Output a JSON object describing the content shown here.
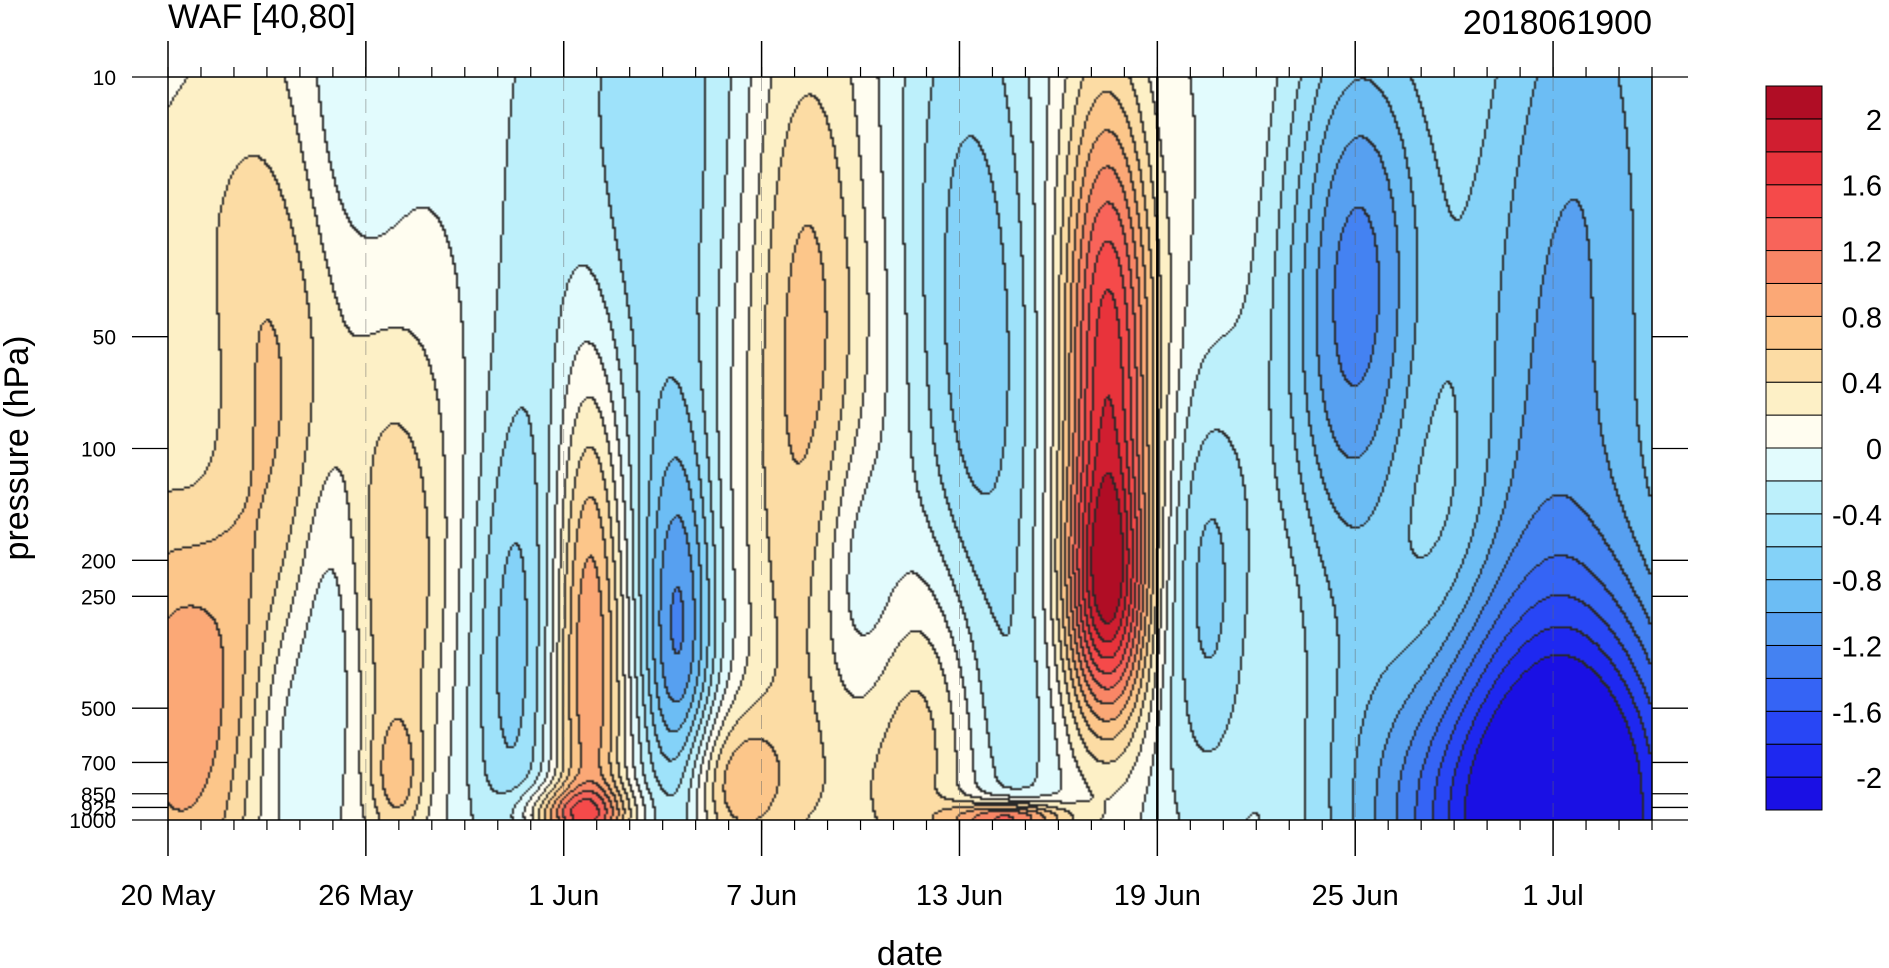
{
  "chart_data": {
    "type": "heatmap",
    "title_left": "WAF [40,80]",
    "title_right": "2018061900",
    "xlabel": "date",
    "ylabel": "pressure (hPa)",
    "log_y": true,
    "ylim": [
      10,
      1000
    ],
    "x_day_range": [
      0,
      45
    ],
    "x_ticks": [
      {
        "label": "20 May",
        "day": 0
      },
      {
        "label": "26 May",
        "day": 6
      },
      {
        "label": "1 Jun",
        "day": 12
      },
      {
        "label": "7 Jun",
        "day": 18
      },
      {
        "label": "13 Jun",
        "day": 24
      },
      {
        "label": "19 Jun",
        "day": 30
      },
      {
        "label": "25 Jun",
        "day": 36
      },
      {
        "label": "1 Jul",
        "day": 42
      }
    ],
    "y_ticks": [
      {
        "label": "10",
        "p": 10
      },
      {
        "label": "50",
        "p": 50
      },
      {
        "label": "100",
        "p": 100
      },
      {
        "label": "200",
        "p": 200
      },
      {
        "label": "250",
        "p": 250
      },
      {
        "label": "500",
        "p": 500
      },
      {
        "label": "700",
        "p": 700
      },
      {
        "label": "850",
        "p": 850
      },
      {
        "label": "925",
        "p": 925
      },
      {
        "label": "1000",
        "p": 1000
      }
    ],
    "analysis_day": 30,
    "colorbar": {
      "levels": [
        -2.2,
        -2.0,
        -1.8,
        -1.6,
        -1.4,
        -1.2,
        -1.0,
        -0.8,
        -0.6,
        -0.4,
        -0.2,
        0,
        0.2,
        0.4,
        0.6,
        0.8,
        1.0,
        1.2,
        1.4,
        1.6,
        1.8,
        2.0,
        2.2
      ],
      "colors": [
        "#1a10e4",
        "#1e28f0",
        "#2846f5",
        "#3564f5",
        "#4482f2",
        "#57a0f0",
        "#6cbdf4",
        "#84d2f8",
        "#9ee2fa",
        "#bdf0fb",
        "#e2fbfd",
        "#fffdf0",
        "#fdf0c6",
        "#fcdca4",
        "#fcc68a",
        "#fba876",
        "#f98666",
        "#f8645a",
        "#f54a4a",
        "#e8333b",
        "#d01e30",
        "#b00d25"
      ],
      "labels": [
        {
          "text": "2",
          "value": 2.0
        },
        {
          "text": "1.6",
          "value": 1.6
        },
        {
          "text": "1.2",
          "value": 1.2
        },
        {
          "text": "0.8",
          "value": 0.8
        },
        {
          "text": "0.4",
          "value": 0.4
        },
        {
          "text": "0",
          "value": 0.0
        },
        {
          "text": "-0.4",
          "value": -0.4
        },
        {
          "text": "-0.8",
          "value": -0.8
        },
        {
          "text": "-1.2",
          "value": -1.2
        },
        {
          "text": "-1.6",
          "value": -1.6
        },
        {
          "text": "-2",
          "value": -2.0
        }
      ]
    },
    "features": [
      {
        "day": 0.5,
        "p": 500,
        "value": 0.9,
        "sd": 1.8,
        "sp": 0.5
      },
      {
        "day": 1.0,
        "p": 100,
        "value": -0.45,
        "sd": 1.2,
        "sp": 0.35
      },
      {
        "day": 3.5,
        "p": 50,
        "value": 0.7,
        "sd": 2.8,
        "sp": 0.65
      },
      {
        "day": 5.5,
        "p": 15,
        "value": -0.55,
        "sd": 1.4,
        "sp": 0.45
      },
      {
        "day": 5.0,
        "p": 300,
        "value": -0.45,
        "sd": 0.8,
        "sp": 0.4
      },
      {
        "day": 3.5,
        "p": 600,
        "value": -0.35,
        "sd": 0.8,
        "sp": 0.3
      },
      {
        "day": 7.0,
        "p": 280,
        "value": 0.45,
        "sd": 1.1,
        "sp": 0.4
      },
      {
        "day": 7.0,
        "p": 780,
        "value": 0.45,
        "sd": 0.6,
        "sp": 0.12
      },
      {
        "day": 10.5,
        "p": 380,
        "value": -0.65,
        "sd": 1.0,
        "sp": 0.5
      },
      {
        "day": 12.8,
        "p": 300,
        "value": 1.15,
        "sd": 0.8,
        "sp": 0.55
      },
      {
        "day": 12.3,
        "p": 960,
        "value": 0.9,
        "sd": 1.2,
        "sp": 0.05
      },
      {
        "day": 14.5,
        "p": 20,
        "value": -0.55,
        "sd": 3.0,
        "sp": 0.8
      },
      {
        "day": 15.5,
        "p": 320,
        "value": -1.1,
        "sd": 0.8,
        "sp": 0.4
      },
      {
        "day": 17.0,
        "p": 800,
        "value": 0.75,
        "sd": 1.2,
        "sp": 0.15
      },
      {
        "day": 19.2,
        "p": 60,
        "value": 0.85,
        "sd": 1.5,
        "sp": 0.7
      },
      {
        "day": 21.0,
        "p": 260,
        "value": -0.55,
        "sd": 1.0,
        "sp": 0.3
      },
      {
        "day": 23.0,
        "p": 600,
        "value": 0.75,
        "sd": 2.0,
        "sp": 0.35
      },
      {
        "day": 25.5,
        "p": 600,
        "value": -0.45,
        "sd": 1.2,
        "sp": 0.3
      },
      {
        "day": 25.5,
        "p": 990,
        "value": 1.4,
        "sd": 1.2,
        "sp": 0.03
      },
      {
        "day": 24.5,
        "p": 50,
        "value": -0.75,
        "sd": 1.5,
        "sp": 0.8
      },
      {
        "day": 28.5,
        "p": 55,
        "value": 1.7,
        "sd": 1.0,
        "sp": 0.5
      },
      {
        "day": 28.5,
        "p": 250,
        "value": 1.5,
        "sd": 0.9,
        "sp": 0.25
      },
      {
        "day": 31.5,
        "p": 230,
        "value": -0.65,
        "sd": 1.0,
        "sp": 0.4
      },
      {
        "day": 37.5,
        "p": 250,
        "value": 0.4,
        "sd": 2.5,
        "sp": 0.6
      },
      {
        "day": 36.0,
        "p": 50,
        "value": -1.4,
        "sd": 1.6,
        "sp": 0.6
      },
      {
        "day": 41.5,
        "p": 120,
        "value": -0.8,
        "sd": 2.5,
        "sp": 1.3
      },
      {
        "day": 44.0,
        "p": 40,
        "value": -0.45,
        "sd": 2.5,
        "sp": 1.4
      },
      {
        "day": 41.5,
        "p": 1000,
        "value": -2.0,
        "sd": 4.0,
        "sp": 0.4
      }
    ]
  }
}
